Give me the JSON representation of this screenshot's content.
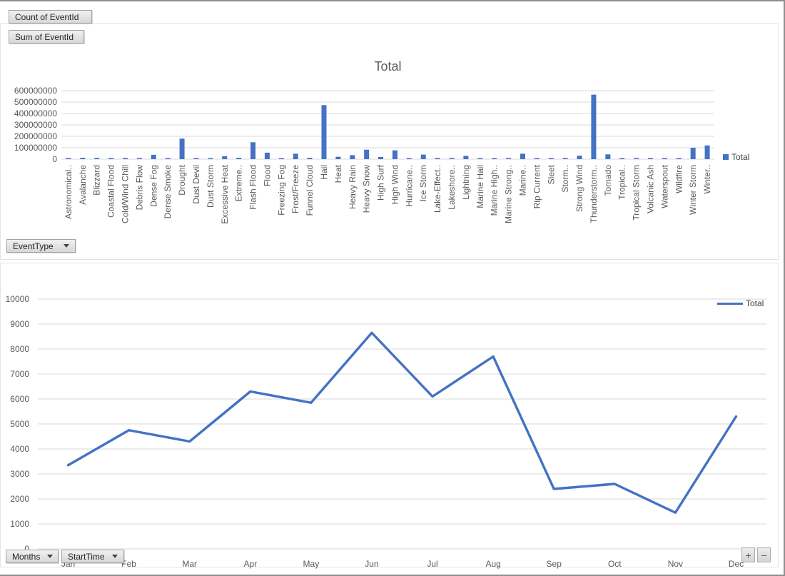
{
  "colors": {
    "series": "#4472C4",
    "gridline": "#D9D9D9",
    "axis_text": "#595959",
    "title_text": "#595959"
  },
  "top_chart": {
    "field_buttons": {
      "count": "Count of EventId",
      "sum": "Sum of EventId",
      "event_type": "EventType"
    }
  },
  "bottom_chart": {
    "field_buttons": {
      "months": "Months",
      "start_time": "StartTime"
    },
    "expand_label": "+",
    "collapse_label": "−"
  },
  "chart_data": [
    {
      "type": "bar",
      "title": "Total",
      "legend_position": "right",
      "ylim": [
        0,
        600000000
      ],
      "ytick_step": 100000000,
      "grid": true,
      "categories": [
        "Astronomical..",
        "Avalanche",
        "Blizzard",
        "Coastal Flood",
        "Cold/Wind Chill",
        "Debris Flow",
        "Dense Fog",
        "Dense Smoke",
        "Drought",
        "Dust Devil",
        "Dust Storm",
        "Excessive Heat",
        "Extreme..",
        "Flash Flood",
        "Flood",
        "Freezing Fog",
        "Frost/Freeze",
        "Funnel Cloud",
        "Hail",
        "Heat",
        "Heavy Rain",
        "Heavy Snow",
        "High Surf",
        "High Wind",
        "Hurricane..",
        "Ice Storm",
        "Lake-Effect..",
        "Lakeshore..",
        "Lightning",
        "Marine Hail",
        "Marine High..",
        "Marine Strong..",
        "Marine..",
        "Rip Current",
        "Sleet",
        "Storm..",
        "Strong Wind",
        "Thunderstorm..",
        "Tornado",
        "Tropical..",
        "Tropical Storm",
        "Volcanic Ash",
        "Waterspout",
        "Wildfire",
        "Winter Storm",
        "Winter.."
      ],
      "series": [
        {
          "name": "Total",
          "values": [
            10000000,
            12000000,
            11000000,
            10000000,
            10000000,
            9000000,
            38000000,
            8000000,
            180000000,
            8000000,
            9000000,
            26000000,
            12000000,
            148000000,
            57000000,
            8000000,
            48000000,
            12000000,
            473000000,
            21000000,
            35000000,
            83000000,
            19000000,
            77000000,
            9000000,
            40000000,
            10000000,
            8000000,
            29000000,
            6000000,
            7000000,
            6000000,
            48000000,
            5000000,
            6000000,
            9000000,
            31000000,
            565000000,
            42000000,
            6000000,
            5000000,
            4000000,
            7000000,
            9000000,
            100000000,
            120000000
          ]
        }
      ]
    },
    {
      "type": "line",
      "title": "",
      "legend_position": "top-right",
      "ylim": [
        0,
        10000
      ],
      "ytick_step": 1000,
      "grid": true,
      "categories": [
        "Jan",
        "Feb",
        "Mar",
        "Apr",
        "May",
        "Jun",
        "Jul",
        "Aug",
        "Sep",
        "Oct",
        "Nov",
        "Dec"
      ],
      "series": [
        {
          "name": "Total",
          "values": [
            3350,
            4750,
            4300,
            6300,
            5850,
            8650,
            6100,
            7700,
            2400,
            2600,
            1450,
            5300
          ]
        }
      ]
    }
  ]
}
